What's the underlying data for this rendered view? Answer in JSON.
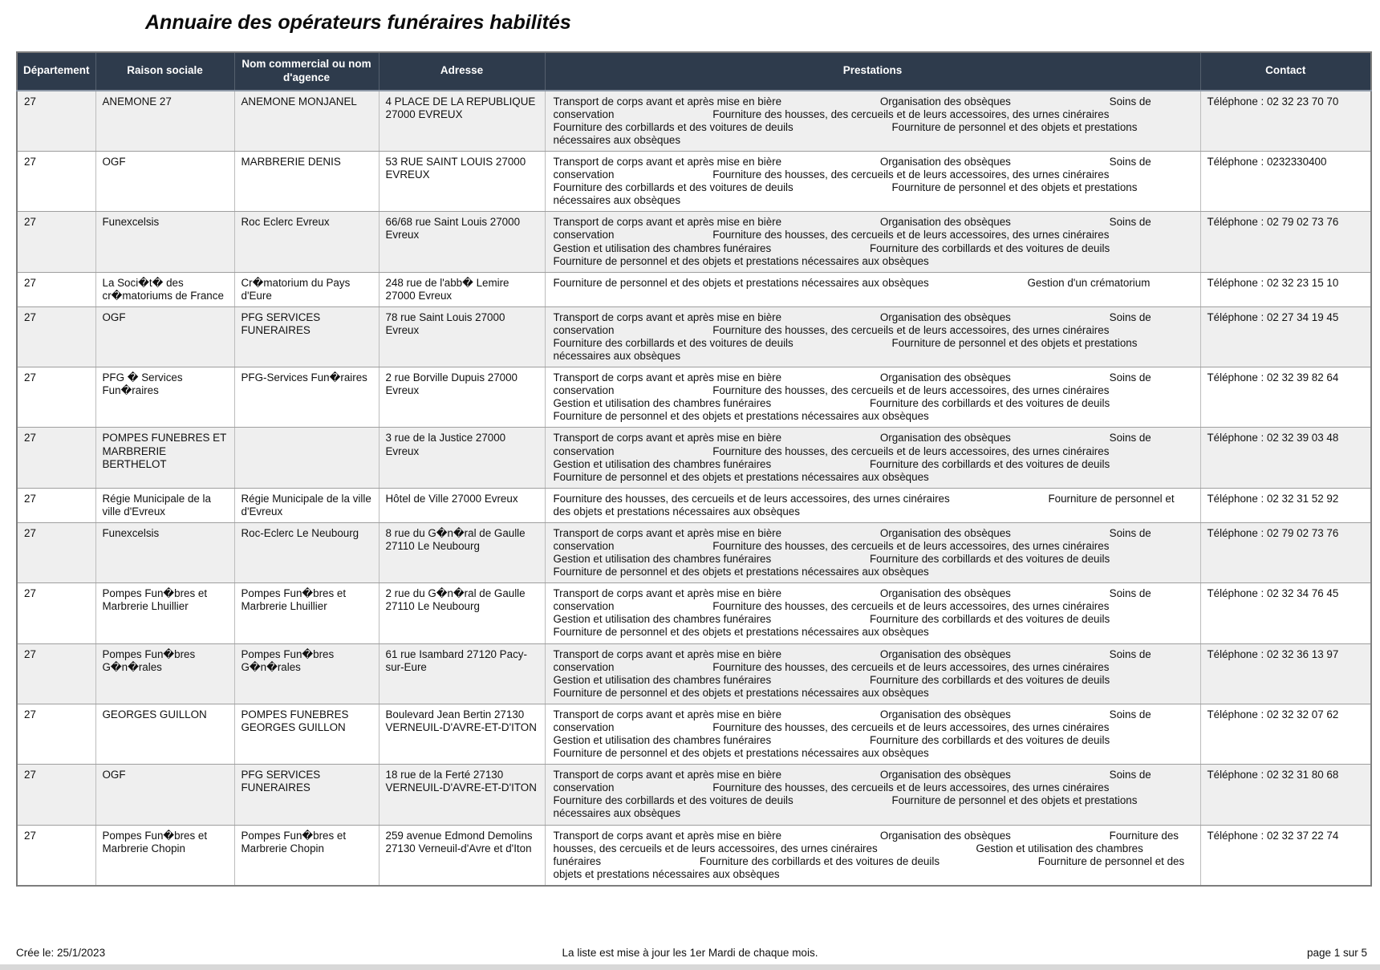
{
  "title": "Annuaire des opérateurs funéraires habilités",
  "colors": {
    "header_bg": "#2e3b4c",
    "header_text": "#ffffff",
    "row_alt_bg": "#efefef",
    "grid_line": "#9e9e9e"
  },
  "table": {
    "columns": [
      "Département",
      "Raison sociale",
      "Nom commercial ou nom d'agence",
      "Adresse",
      "Prestations",
      "Contact"
    ],
    "rows": [
      {
        "departement": "27",
        "raison_sociale": "ANEMONE 27",
        "nom_commercial": "ANEMONE MONJANEL",
        "adresse": "4 PLACE DE LA REPUBLIQUE 27000 EVREUX",
        "prestations": [
          "Transport de corps avant et après mise en bière",
          "Organisation des obsèques",
          "Soins de conservation",
          "Fourniture des housses, des cercueils et de leurs accessoires, des urnes cinéraires",
          "Fourniture des corbillards et des voitures de deuils",
          "Fourniture de personnel et des objets et prestations nécessaires aux obsèques"
        ],
        "contact": "Téléphone : 02 32 23 70 70"
      },
      {
        "departement": "27",
        "raison_sociale": "OGF",
        "nom_commercial": "MARBRERIE DENIS",
        "adresse": "53 RUE SAINT LOUIS 27000 EVREUX",
        "prestations": [
          "Transport de corps avant et après mise en bière",
          "Organisation des obsèques",
          "Soins de conservation",
          "Fourniture des housses, des cercueils et de leurs accessoires, des urnes cinéraires",
          "Fourniture des corbillards et des voitures de deuils",
          "Fourniture de personnel et des objets et prestations nécessaires aux obsèques"
        ],
        "contact": "Téléphone : 0232330400"
      },
      {
        "departement": "27",
        "raison_sociale": "Funexcelsis",
        "nom_commercial": "Roc Eclerc Evreux",
        "adresse": "66/68 rue Saint Louis 27000 Evreux",
        "prestations": [
          "Transport de corps avant et après mise en bière",
          "Organisation des obsèques",
          "Soins de conservation",
          "Fourniture des housses, des cercueils et de leurs accessoires, des urnes cinéraires",
          "Gestion et utilisation des chambres funéraires",
          "Fourniture des corbillards et des voitures de deuils",
          "Fourniture de personnel et des objets et prestations nécessaires aux obsèques"
        ],
        "contact": "Téléphone : 02 79 02 73 76"
      },
      {
        "departement": "27",
        "raison_sociale": "La Soci�t� des cr�matoriums de France",
        "nom_commercial": "Cr�matorium du Pays d'Eure",
        "adresse": "248 rue de l'abb� Lemire 27000 Evreux",
        "prestations": [
          "Fourniture de personnel et des objets et prestations nécessaires aux obsèques",
          "Gestion d'un crématorium"
        ],
        "contact": "Téléphone : 02 32 23 15 10"
      },
      {
        "departement": "27",
        "raison_sociale": "OGF",
        "nom_commercial": "PFG SERVICES FUNERAIRES",
        "adresse": "78 rue Saint Louis 27000 Evreux",
        "prestations": [
          "Transport de corps avant et après mise en bière",
          "Organisation des obsèques",
          "Soins de conservation",
          "Fourniture des housses, des cercueils et de leurs accessoires, des urnes cinéraires",
          "Fourniture des corbillards et des voitures de deuils",
          "Fourniture de personnel et des objets et prestations nécessaires aux obsèques"
        ],
        "contact": "Téléphone : 02 27 34 19 45"
      },
      {
        "departement": "27",
        "raison_sociale": "PFG � Services Fun�raires",
        "nom_commercial": "PFG-Services Fun�raires",
        "adresse": "2 rue Borville Dupuis 27000 Evreux",
        "prestations": [
          "Transport de corps avant et après mise en bière",
          "Organisation des obsèques",
          "Soins de conservation",
          "Fourniture des housses, des cercueils et de leurs accessoires, des urnes cinéraires",
          "Gestion et utilisation des chambres funéraires",
          "Fourniture des corbillards et des voitures de deuils",
          "Fourniture de personnel et des objets et prestations nécessaires aux obsèques"
        ],
        "contact": "Téléphone : 02 32 39 82 64"
      },
      {
        "departement": "27",
        "raison_sociale": "POMPES FUNEBRES ET MARBRERIE BERTHELOT",
        "nom_commercial": "",
        "adresse": "3 rue de la Justice 27000 Evreux",
        "prestations": [
          "Transport de corps avant et après mise en bière",
          "Organisation des obsèques",
          "Soins de conservation",
          "Fourniture des housses, des cercueils et de leurs accessoires, des urnes cinéraires",
          "Gestion et utilisation des chambres funéraires",
          "Fourniture des corbillards et des voitures de deuils",
          "Fourniture de personnel et des objets et prestations nécessaires aux obsèques"
        ],
        "contact": "Téléphone : 02 32 39 03 48"
      },
      {
        "departement": "27",
        "raison_sociale": "Régie Municipale de la ville d'Evreux",
        "nom_commercial": "Régie Municipale de la ville d'Evreux",
        "adresse": "Hôtel de Ville 27000 Evreux",
        "prestations": [
          "Fourniture des housses, des cercueils et de leurs accessoires, des urnes cinéraires",
          "Fourniture de personnel et des objets et prestations nécessaires aux obsèques"
        ],
        "contact": "Téléphone : 02 32 31 52 92"
      },
      {
        "departement": "27",
        "raison_sociale": "Funexcelsis",
        "nom_commercial": "Roc-Eclerc Le Neubourg",
        "adresse": "8 rue du G�n�ral de Gaulle 27110 Le Neubourg",
        "prestations": [
          "Transport de corps avant et après mise en bière",
          "Organisation des obsèques",
          "Soins de conservation",
          "Fourniture des housses, des cercueils et de leurs accessoires, des urnes cinéraires",
          "Gestion et utilisation des chambres funéraires",
          "Fourniture des corbillards et des voitures de deuils",
          "Fourniture de personnel et des objets et prestations nécessaires aux obsèques"
        ],
        "contact": "Téléphone : 02 79 02 73 76"
      },
      {
        "departement": "27",
        "raison_sociale": "Pompes Fun�bres et Marbrerie Lhuillier",
        "nom_commercial": "Pompes Fun�bres et Marbrerie Lhuillier",
        "adresse": "2 rue du G�n�ral de Gaulle 27110 Le Neubourg",
        "prestations": [
          "Transport de corps avant et après mise en bière",
          "Organisation des obsèques",
          "Soins de conservation",
          "Fourniture des housses, des cercueils et de leurs accessoires, des urnes cinéraires",
          "Gestion et utilisation des chambres funéraires",
          "Fourniture des corbillards et des voitures de deuils",
          "Fourniture de personnel et des objets et prestations nécessaires aux obsèques"
        ],
        "contact": "Téléphone : 02 32 34 76 45"
      },
      {
        "departement": "27",
        "raison_sociale": "Pompes Fun�bres G�n�rales",
        "nom_commercial": "Pompes Fun�bres G�n�rales",
        "adresse": "61 rue Isambard 27120 Pacy-sur-Eure",
        "prestations": [
          "Transport de corps avant et après mise en bière",
          "Organisation des obsèques",
          "Soins de conservation",
          "Fourniture des housses, des cercueils et de leurs accessoires, des urnes cinéraires",
          "Gestion et utilisation des chambres funéraires",
          "Fourniture des corbillards et des voitures de deuils",
          "Fourniture de personnel et des objets et prestations nécessaires aux obsèques"
        ],
        "contact": "Téléphone : 02 32 36 13 97"
      },
      {
        "departement": "27",
        "raison_sociale": "GEORGES GUILLON",
        "nom_commercial": "POMPES FUNEBRES GEORGES GUILLON",
        "adresse": "Boulevard Jean Bertin 27130 VERNEUIL-D'AVRE-ET-D'ITON",
        "prestations": [
          "Transport de corps avant et après mise en bière",
          "Organisation des obsèques",
          "Soins de conservation",
          "Fourniture des housses, des cercueils et de leurs accessoires, des urnes cinéraires",
          "Gestion et utilisation des chambres funéraires",
          "Fourniture des corbillards et des voitures de deuils",
          "Fourniture de personnel et des objets et prestations nécessaires aux obsèques"
        ],
        "contact": "Téléphone : 02 32 32 07 62"
      },
      {
        "departement": "27",
        "raison_sociale": "OGF",
        "nom_commercial": "PFG SERVICES FUNERAIRES",
        "adresse": "18 rue de la Ferté 27130 VERNEUIL-D'AVRE-ET-D'ITON",
        "prestations": [
          "Transport de corps avant et après mise en bière",
          "Organisation des obsèques",
          "Soins de conservation",
          "Fourniture des housses, des cercueils et de leurs accessoires, des urnes cinéraires",
          "Fourniture des corbillards et des voitures de deuils",
          "Fourniture de personnel et des objets et prestations nécessaires aux obsèques"
        ],
        "contact": "Téléphone : 02 32 31 80 68"
      },
      {
        "departement": "27",
        "raison_sociale": "Pompes Fun�bres et Marbrerie Chopin",
        "nom_commercial": "Pompes Fun�bres et Marbrerie Chopin",
        "adresse": "259 avenue Edmond Demolins 27130 Verneuil-d'Avre et d'Iton",
        "prestations": [
          "Transport de corps avant et après mise en bière",
          "Organisation des obsèques",
          "Fourniture des housses, des cercueils et de leurs accessoires, des urnes cinéraires",
          "Gestion et utilisation des chambres funéraires",
          "Fourniture des corbillards et des voitures de deuils",
          "Fourniture de personnel et des objets et prestations nécessaires aux obsèques"
        ],
        "contact": "Téléphone : 02 32 37 22 74"
      }
    ]
  },
  "footer": {
    "created": "Crée le: 25/1/2023",
    "note": "La liste est mise à jour les 1er Mardi de chaque mois.",
    "page": "page 1 sur 5"
  }
}
